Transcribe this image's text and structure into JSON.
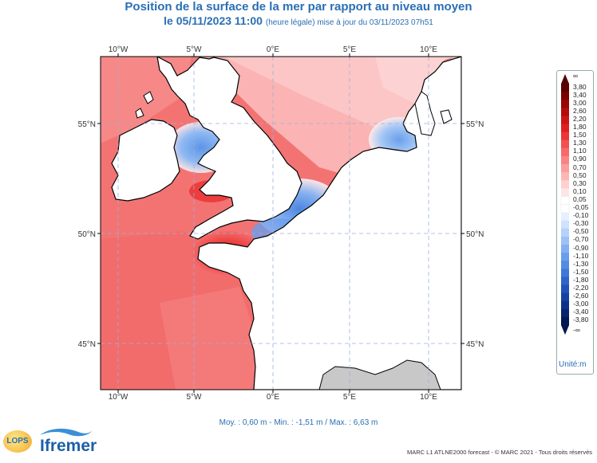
{
  "header": {
    "title_line1": "Position de la surface de la mer par rapport au niveau moyen",
    "title_line2_main": "le 05/11/2023 11:00",
    "title_line2_sub": "(heure légale) mise à jour du 03/11/2023 07h51"
  },
  "map": {
    "lon_labels": [
      "10°W",
      "5°W",
      "0°E",
      "5°E",
      "10°E"
    ],
    "lat_labels": [
      "55°N",
      "50°N",
      "45°N"
    ],
    "grid": true,
    "land_color": "#ffffff",
    "foreign_land_color": "#c8c8c8",
    "coast_color": "#000000"
  },
  "legend": {
    "top_symbol": "∞",
    "bottom_symbol": "-∞",
    "values": [
      "3,80",
      "3,40",
      "3,00",
      "2,60",
      "2,20",
      "1,80",
      "1,50",
      "1,30",
      "1,10",
      "0,90",
      "0,70",
      "0,50",
      "0,30",
      "0,10",
      "0,05",
      "-0,05",
      "-0,10",
      "-0,30",
      "-0,50",
      "-0,70",
      "-0,90",
      "-1,10",
      "-1,30",
      "-1,50",
      "-1,80",
      "-2,20",
      "-2,60",
      "-3,00",
      "-3,40",
      "-3,80"
    ],
    "colors": [
      "#5a0000",
      "#7a0000",
      "#9a0505",
      "#b30c0c",
      "#cc1616",
      "#e02020",
      "#ee3535",
      "#f45050",
      "#f86a6a",
      "#fa8484",
      "#fc9e9e",
      "#fdb6b6",
      "#fed0d0",
      "#ffe6e6",
      "#ffffff",
      "#ffffff",
      "#e6f0ff",
      "#cfe2ff",
      "#b6d2fb",
      "#9dc1f7",
      "#84b0f2",
      "#6a9eec",
      "#528be4",
      "#3f78d9",
      "#2f64cb",
      "#2152b9",
      "#1641a2",
      "#0d3188",
      "#07246d",
      "#021650"
    ],
    "unit": "Unité:m"
  },
  "stats": {
    "text": "Moy. : 0,60 m   -   Min. : -1,51 m / Max. : 6,63 m"
  },
  "footer": {
    "credit": "MARC L1 ATLNE2000 forecast - © MARC 2021 - Tous droits réservés",
    "logo_lops": "LOPS",
    "logo_ifremer": "Ifremer"
  }
}
